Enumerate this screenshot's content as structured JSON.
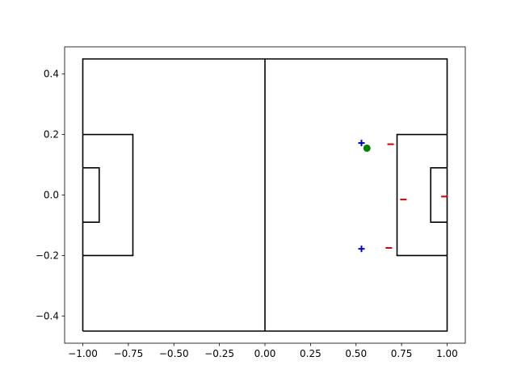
{
  "chart_data": {
    "type": "scatter",
    "title": "",
    "xlabel": "",
    "ylabel": "",
    "xlim": [
      -1.1,
      1.1
    ],
    "ylim": [
      -0.49,
      0.49
    ],
    "grid": false,
    "x_ticks": [
      -1.0,
      -0.75,
      -0.5,
      -0.25,
      0.0,
      0.25,
      0.5,
      0.75,
      1.0
    ],
    "x_tick_labels": [
      "−1.00",
      "−0.75",
      "−0.50",
      "−0.25",
      "0.00",
      "0.25",
      "0.50",
      "0.75",
      "1.00"
    ],
    "y_ticks": [
      -0.4,
      -0.2,
      0.0,
      0.2,
      0.4
    ],
    "y_tick_labels": [
      "−0.4",
      "−0.2",
      "0.0",
      "0.2",
      "0.4"
    ],
    "field_lines": [
      {
        "name": "field-boundary",
        "points": [
          [
            -1,
            -0.45
          ],
          [
            1,
            -0.45
          ],
          [
            1,
            0.45
          ],
          [
            -1,
            0.45
          ],
          [
            -1,
            -0.45
          ]
        ]
      },
      {
        "name": "halfway-line",
        "points": [
          [
            0,
            -0.45
          ],
          [
            0,
            0.45
          ]
        ]
      },
      {
        "name": "left-penalty-box",
        "points": [
          [
            -1,
            -0.2
          ],
          [
            -0.725,
            -0.2
          ],
          [
            -0.725,
            0.2
          ],
          [
            -1,
            0.2
          ]
        ]
      },
      {
        "name": "left-goal-box",
        "points": [
          [
            -1,
            -0.09
          ],
          [
            -0.91,
            -0.09
          ],
          [
            -0.91,
            0.09
          ],
          [
            -1,
            0.09
          ]
        ]
      },
      {
        "name": "right-penalty-box",
        "points": [
          [
            1,
            -0.2
          ],
          [
            0.725,
            -0.2
          ],
          [
            0.725,
            0.2
          ],
          [
            1,
            0.2
          ]
        ]
      },
      {
        "name": "right-goal-box",
        "points": [
          [
            1,
            -0.09
          ],
          [
            0.91,
            -0.09
          ],
          [
            0.91,
            0.09
          ],
          [
            1,
            0.09
          ]
        ]
      }
    ],
    "line_color": "#000000",
    "series": [
      {
        "marker": "plus",
        "color": "#0000cc",
        "points": [
          [
            0.53,
            0.172
          ],
          [
            0.53,
            -0.178
          ]
        ]
      },
      {
        "marker": "minus",
        "color": "#cc0000",
        "points": [
          [
            0.69,
            0.168
          ],
          [
            0.76,
            -0.015
          ],
          [
            0.985,
            -0.005
          ],
          [
            0.68,
            -0.175
          ]
        ]
      },
      {
        "marker": "circle",
        "color": "#008000",
        "points": [
          [
            0.56,
            0.155
          ]
        ]
      }
    ]
  }
}
